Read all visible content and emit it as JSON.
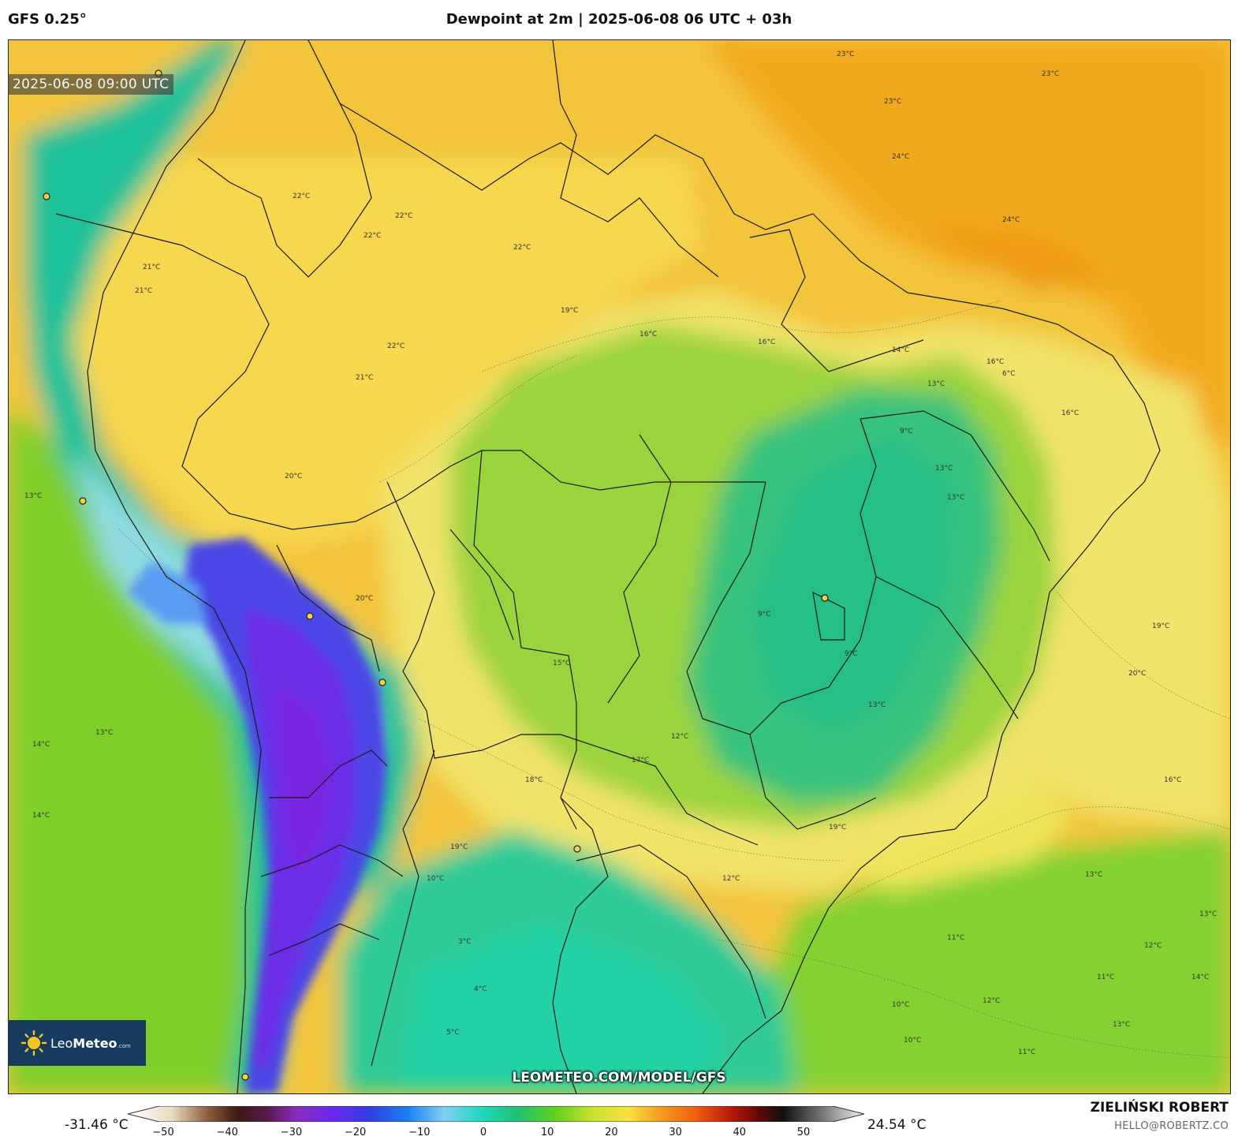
{
  "header": {
    "model": "GFS 0.25°",
    "title": "Dewpoint at 2m | 2025-06-08 06 UTC + 03h"
  },
  "map": {
    "valid_time": "2025-06-08 09:00 UTC",
    "website": "LEOMETEO.COM/MODEL/GFS",
    "logo": {
      "text_light": "Leo",
      "text_bold": "Meteo",
      "suffix": ".com"
    },
    "contour_labels": [
      "23°C",
      "23°C",
      "23°C",
      "24°C",
      "24°C",
      "22°C",
      "22°C",
      "22°C",
      "21°C",
      "21°C",
      "22°C",
      "21°C",
      "22°C",
      "20°C",
      "19°C",
      "16°C",
      "16°C",
      "14°C",
      "13°C",
      "9°C",
      "13°C",
      "13°C",
      "16°C",
      "9°C",
      "9°C",
      "12°C",
      "17°C",
      "18°C",
      "20°C",
      "19°C",
      "20°C",
      "16°C",
      "19°C",
      "12°C",
      "13°C",
      "11°C",
      "12°C",
      "14°C",
      "11°C",
      "12°C",
      "13°C",
      "10°C",
      "10°C",
      "11°C",
      "13°C",
      "14°C",
      "13°C",
      "13°C",
      "14°C",
      "19°C",
      "15°C",
      "6°C",
      "16°C",
      "3°C",
      "4°C",
      "5°C",
      "10°C",
      "13°C"
    ],
    "city_markers": 9
  },
  "colorbar": {
    "min_label": "-31.46 °C",
    "max_label": "24.54 °C",
    "ticks": [
      "−50",
      "−40",
      "−30",
      "−20",
      "−10",
      "0",
      "10",
      "20",
      "30",
      "40",
      "50"
    ]
  },
  "credit": {
    "author": "ZIELIŃSKI ROBERT",
    "email": "HELLO@ROBERTZ.CO"
  }
}
